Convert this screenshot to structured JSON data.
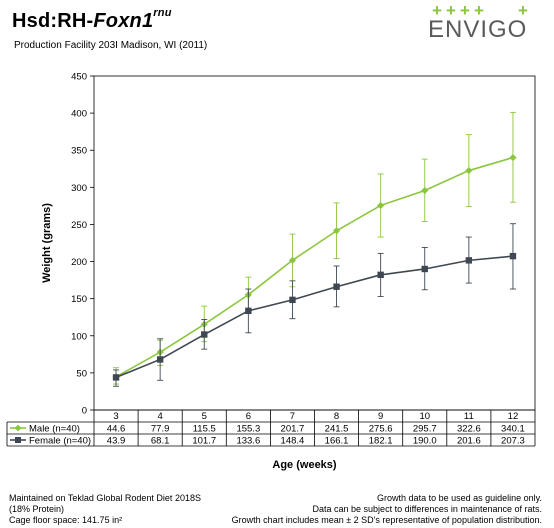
{
  "header": {
    "title_prefix": "Hsd:RH-",
    "title_gene": "Foxn1",
    "title_sup": "rnu",
    "subtitle": "Production Facility 203I Madison, WI (2011)"
  },
  "logo": {
    "plus_mark": "+",
    "text": "ENVIGO",
    "accent": "#8cc63f",
    "text_color": "#5b5b5b"
  },
  "chart_data": {
    "type": "line",
    "xlabel": "Age (weeks)",
    "ylabel": "Weight (grams)",
    "categories": [
      "3",
      "4",
      "5",
      "6",
      "7",
      "8",
      "9",
      "10",
      "11",
      "12"
    ],
    "ylim": [
      0,
      450
    ],
    "yticks": [
      0,
      50,
      100,
      150,
      200,
      250,
      300,
      350,
      400,
      450
    ],
    "grid": false,
    "series": [
      {
        "name": "Male (n=40)",
        "color": "#8cc63f",
        "marker": "diamond",
        "values": [
          44.6,
          77.9,
          115.5,
          155.3,
          201.7,
          241.5,
          275.6,
          295.7,
          322.6,
          340.1
        ],
        "values_text": [
          "44.6",
          "77.9",
          "115.5",
          "155.3",
          "201.7",
          "241.5",
          "275.6",
          "295.7",
          "322.6",
          "340.1"
        ],
        "err_low": [
          35,
          60,
          92,
          130,
          166,
          204,
          233,
          254,
          274,
          280
        ],
        "err_high": [
          57,
          94,
          140,
          179,
          237,
          279,
          318,
          338,
          371,
          401
        ]
      },
      {
        "name": "Female (n=40)",
        "color": "#3f4852",
        "marker": "square",
        "values": [
          43.9,
          68.1,
          101.7,
          133.6,
          148.4,
          166.1,
          182.1,
          190.0,
          201.6,
          207.3
        ],
        "values_text": [
          "43.9",
          "68.1",
          "101.7",
          "133.6",
          "148.4",
          "166.1",
          "182.1",
          "190.0",
          "201.6",
          "207.3"
        ],
        "err_low": [
          32,
          40,
          82,
          104,
          123,
          139,
          153,
          162,
          171,
          163
        ],
        "err_high": [
          54,
          96,
          122,
          163,
          174,
          194,
          211,
          219,
          233,
          251
        ]
      }
    ]
  },
  "footer": {
    "left": [
      "Maintained on Teklad Global Rodent Diet 2018S",
      "(18% Protein)",
      "Cage floor space: 141.75 in²"
    ],
    "right": [
      "Growth data to be used as guideline only.",
      "Data can be subject to differences in maintenance of rats.",
      "Growth chart includes mean ± 2 SD's representative of population distribution."
    ]
  }
}
